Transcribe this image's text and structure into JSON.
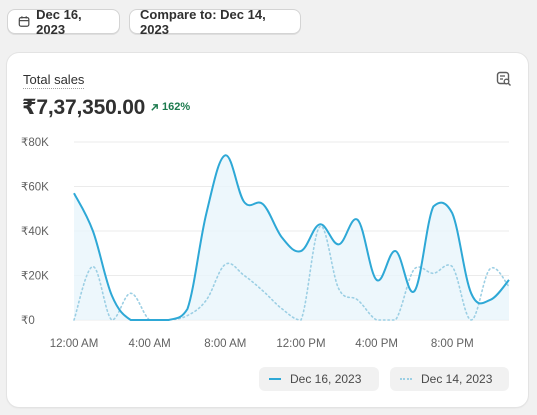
{
  "toolbar": {
    "date_label": "Dec 16, 2023",
    "compare_label": "Compare to: Dec 14, 2023"
  },
  "card": {
    "title": "Total sales",
    "value": "₹7,37,350.00",
    "change": "162%",
    "change_icon": "arrow-up-right-icon",
    "action_icon": "chart-search-icon"
  },
  "colors": {
    "current_line": "#2ea8d6",
    "compare_line": "#9ccfe4",
    "area_fill": "#e8f5fb",
    "positive": "#1b7a4d"
  },
  "chart_data": {
    "type": "line",
    "title": "Total sales",
    "xlabel": "",
    "ylabel": "",
    "x_tick_labels": [
      "12:00 AM",
      "4:00 AM",
      "8:00 AM",
      "12:00 PM",
      "4:00 PM",
      "8:00 PM"
    ],
    "y_tick_labels": [
      "₹0",
      "₹20K",
      "₹40K",
      "₹60K",
      "₹80K"
    ],
    "ylim": [
      0,
      80000
    ],
    "x_hours": [
      0,
      1,
      2,
      3,
      4,
      5,
      6,
      7,
      8,
      9,
      10,
      11,
      12,
      13,
      14,
      15,
      16,
      17,
      18,
      19,
      20,
      21,
      22,
      23
    ],
    "grid": true,
    "legend_position": "bottom-right",
    "series": [
      {
        "name": "Dec 16, 2023",
        "style": "solid",
        "values": [
          57000,
          40000,
          11000,
          0,
          0,
          0,
          5000,
          48000,
          74000,
          53000,
          52000,
          37000,
          31000,
          43000,
          34000,
          45000,
          18000,
          31000,
          13000,
          51000,
          48000,
          12000,
          9000,
          18000
        ]
      },
      {
        "name": "Dec 14, 2023",
        "style": "dotted",
        "values": [
          0,
          24000,
          0,
          12000,
          0,
          0,
          2000,
          9000,
          25000,
          20000,
          13000,
          5000,
          0,
          42000,
          14000,
          9000,
          0,
          0,
          23000,
          21000,
          24000,
          0,
          23000,
          15000
        ]
      }
    ]
  },
  "legend": {
    "current_label": "Dec 16, 2023",
    "compare_label": "Dec 14, 2023"
  }
}
